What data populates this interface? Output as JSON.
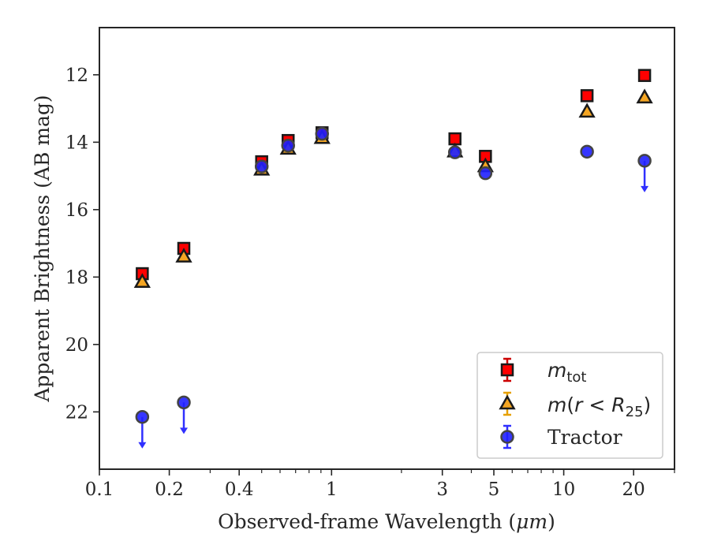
{
  "chart_data": {
    "type": "scatter",
    "xlabel_prefix": "Observed-frame Wavelength (",
    "xlabel_unit": "μm",
    "xlabel_suffix": ")",
    "ylabel": "Apparent Brightness (AB mag)",
    "x_scale": "log",
    "xlim": [
      0.1,
      30
    ],
    "ylim": [
      23.7,
      10.6
    ],
    "y_inverted": true,
    "x_ticks": [
      {
        "value": 0.1,
        "label": "0.1"
      },
      {
        "value": 0.2,
        "label": "0.2"
      },
      {
        "value": 0.4,
        "label": "0.4"
      },
      {
        "value": 1,
        "label": "1"
      },
      {
        "value": 3,
        "label": "3"
      },
      {
        "value": 5,
        "label": "5"
      },
      {
        "value": 10,
        "label": "10"
      },
      {
        "value": 20,
        "label": "20"
      }
    ],
    "x_minor_ticks": [
      0.3,
      0.5,
      0.6,
      0.7,
      0.8,
      0.9,
      2,
      4,
      6,
      7,
      8,
      9,
      30
    ],
    "y_ticks": [
      {
        "value": 12,
        "label": "12"
      },
      {
        "value": 14,
        "label": "14"
      },
      {
        "value": 16,
        "label": "16"
      },
      {
        "value": 18,
        "label": "18"
      },
      {
        "value": 20,
        "label": "20"
      },
      {
        "value": 22,
        "label": "22"
      }
    ],
    "legend_position": "lower-right",
    "series": [
      {
        "name": "m_tot",
        "legend_base": "m",
        "legend_sub": "tot",
        "marker": "square",
        "color": "#ff0000",
        "edge_color": "#1a1a1a",
        "errorbar_color": "#cc0000",
        "points": [
          {
            "x": 0.153,
            "y": 17.9
          },
          {
            "x": 0.231,
            "y": 17.15
          },
          {
            "x": 0.5,
            "y": 14.58
          },
          {
            "x": 0.65,
            "y": 13.95
          },
          {
            "x": 0.91,
            "y": 13.72
          },
          {
            "x": 3.4,
            "y": 13.9
          },
          {
            "x": 4.6,
            "y": 14.42
          },
          {
            "x": 12.6,
            "y": 12.62
          },
          {
            "x": 22.3,
            "y": 12.02
          }
        ]
      },
      {
        "name": "m(r<R25)",
        "legend_m": "m",
        "legend_open": "(",
        "legend_r": "r",
        "legend_lt": " < ",
        "legend_R": "R",
        "legend_sub": "25",
        "legend_close": ")",
        "marker": "triangle",
        "color": "#f5a623",
        "edge_color": "#1a1a1a",
        "errorbar_color": "#e6a000",
        "points": [
          {
            "x": 0.153,
            "y": 18.15
          },
          {
            "x": 0.231,
            "y": 17.4
          },
          {
            "x": 0.5,
            "y": 14.82
          },
          {
            "x": 0.65,
            "y": 14.2
          },
          {
            "x": 0.91,
            "y": 13.88
          },
          {
            "x": 3.4,
            "y": 14.28
          },
          {
            "x": 4.6,
            "y": 14.72
          },
          {
            "x": 12.6,
            "y": 13.1
          },
          {
            "x": 22.3,
            "y": 12.68
          }
        ]
      },
      {
        "name": "Tractor",
        "marker": "circle",
        "color": "#2020ff",
        "edge_color": "#444444",
        "errorbar_color": "#3030ff",
        "points": [
          {
            "x": 0.153,
            "y": 22.15,
            "upper_limit": true
          },
          {
            "x": 0.231,
            "y": 21.72,
            "upper_limit": true
          },
          {
            "x": 0.5,
            "y": 14.72
          },
          {
            "x": 0.65,
            "y": 14.1
          },
          {
            "x": 0.91,
            "y": 13.75
          },
          {
            "x": 3.4,
            "y": 14.3
          },
          {
            "x": 4.6,
            "y": 14.92
          },
          {
            "x": 12.6,
            "y": 14.28
          },
          {
            "x": 22.3,
            "y": 14.55,
            "upper_limit": true
          }
        ]
      }
    ]
  }
}
